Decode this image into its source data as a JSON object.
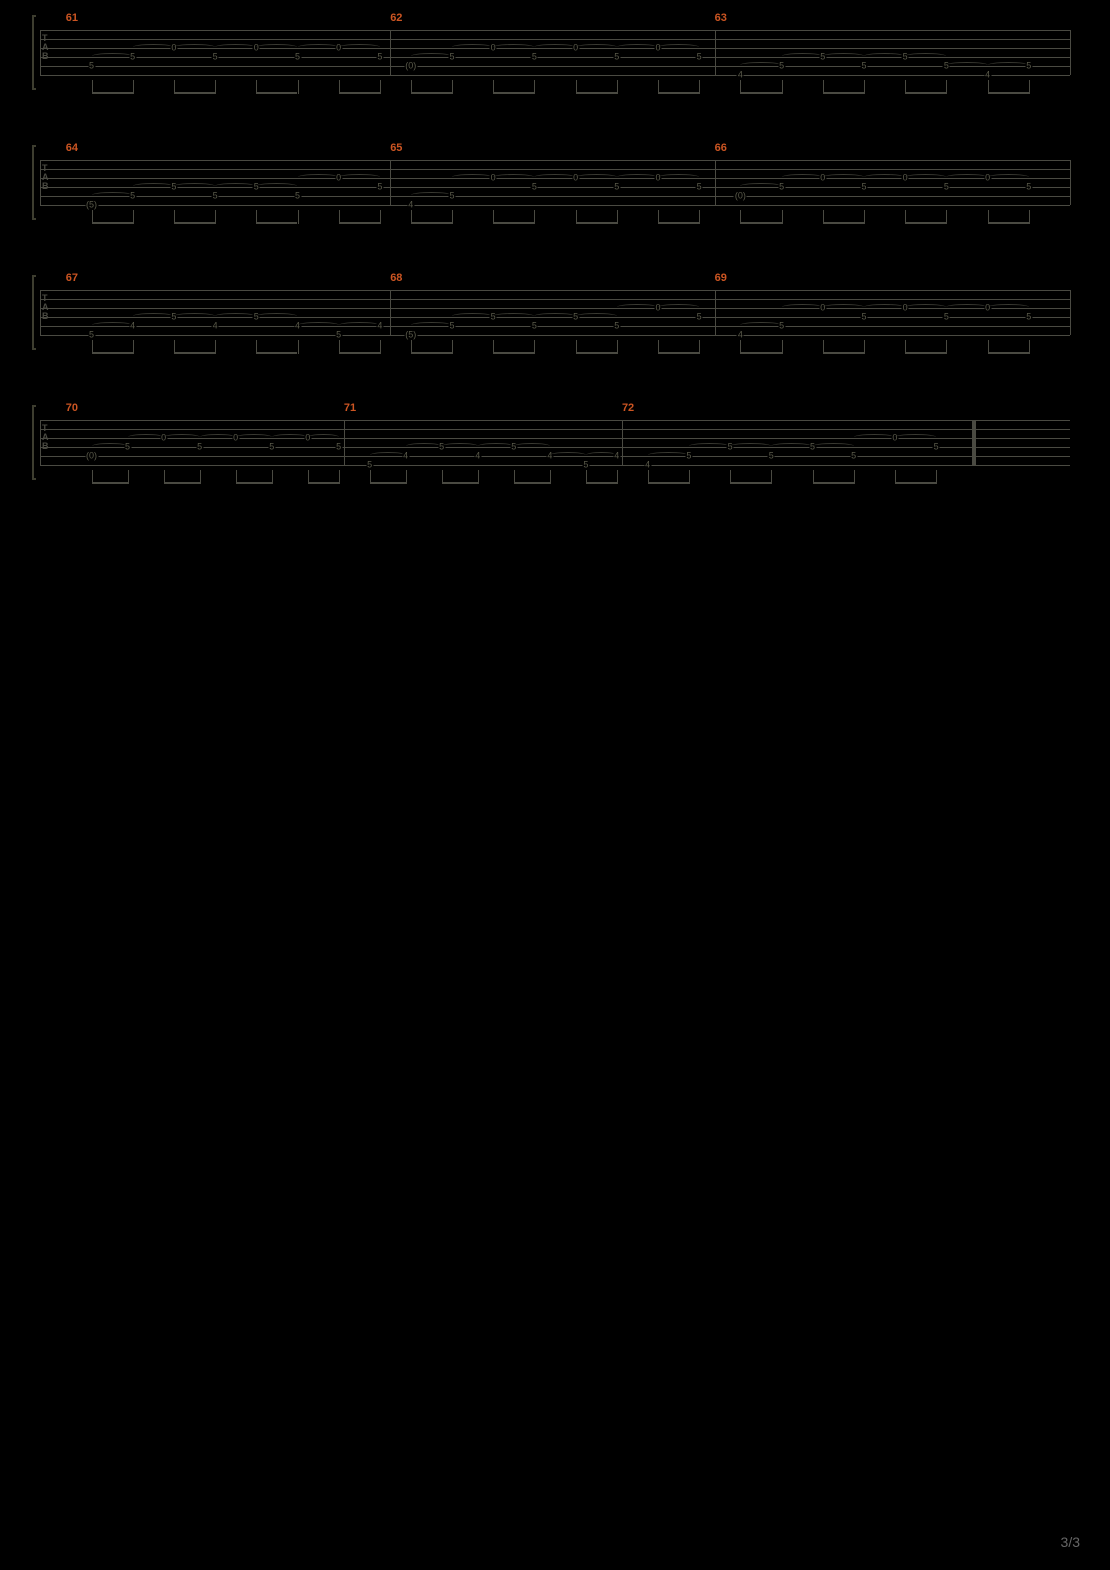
{
  "page_info": {
    "current": 3,
    "total": 3,
    "label": "3/3"
  },
  "colors": {
    "background": "#000000",
    "staff_line": "#4a4a42",
    "measure_number": "#cc5522",
    "fret_text": "#5a5a4a",
    "bracket": "#3d3d2f"
  },
  "tab_clef_letters": [
    "T",
    "A",
    "B"
  ],
  "staff_rows": [
    {
      "measures": [
        {
          "number": "61",
          "start_pct": 2.5,
          "width_pct": 31.5,
          "notes": [
            {
              "x": 5,
              "string": 4,
              "fret": "5"
            },
            {
              "x": 9,
              "string": 3,
              "fret": "5"
            },
            {
              "x": 13,
              "string": 2,
              "fret": "0"
            },
            {
              "x": 17,
              "string": 3,
              "fret": "5"
            },
            {
              "x": 21,
              "string": 2,
              "fret": "0"
            },
            {
              "x": 25,
              "string": 3,
              "fret": "5"
            },
            {
              "x": 29,
              "string": 2,
              "fret": "0"
            },
            {
              "x": 33,
              "string": 3,
              "fret": "5"
            }
          ],
          "beams": [
            [
              5,
              9
            ],
            [
              13,
              17
            ],
            [
              21,
              25
            ],
            [
              29,
              33
            ]
          ]
        },
        {
          "number": "62",
          "start_pct": 34,
          "width_pct": 31.5,
          "notes": [
            {
              "x": 36,
              "string": 4,
              "fret": "(0)",
              "paren": true
            },
            {
              "x": 40,
              "string": 3,
              "fret": "5"
            },
            {
              "x": 44,
              "string": 2,
              "fret": "0"
            },
            {
              "x": 48,
              "string": 3,
              "fret": "5"
            },
            {
              "x": 52,
              "string": 2,
              "fret": "0"
            },
            {
              "x": 56,
              "string": 3,
              "fret": "5"
            },
            {
              "x": 60,
              "string": 2,
              "fret": "0"
            },
            {
              "x": 64,
              "string": 3,
              "fret": "5"
            }
          ],
          "beams": [
            [
              36,
              40
            ],
            [
              44,
              48
            ],
            [
              52,
              56
            ],
            [
              60,
              64
            ]
          ]
        },
        {
          "number": "63",
          "start_pct": 65.5,
          "width_pct": 34.5,
          "notes": [
            {
              "x": 68,
              "string": 5,
              "fret": "4"
            },
            {
              "x": 72,
              "string": 4,
              "fret": "5"
            },
            {
              "x": 76,
              "string": 3,
              "fret": "5"
            },
            {
              "x": 80,
              "string": 4,
              "fret": "5"
            },
            {
              "x": 84,
              "string": 3,
              "fret": "5"
            },
            {
              "x": 88,
              "string": 4,
              "fret": "5"
            },
            {
              "x": 92,
              "string": 5,
              "fret": "4"
            },
            {
              "x": 96,
              "string": 4,
              "fret": "5"
            }
          ],
          "beams": [
            [
              68,
              72
            ],
            [
              76,
              80
            ],
            [
              84,
              88
            ],
            [
              92,
              96
            ]
          ]
        }
      ]
    },
    {
      "measures": [
        {
          "number": "64",
          "start_pct": 2.5,
          "width_pct": 31.5,
          "notes": [
            {
              "x": 5,
              "string": 5,
              "fret": "(5)",
              "paren": true
            },
            {
              "x": 9,
              "string": 4,
              "fret": "5"
            },
            {
              "x": 13,
              "string": 3,
              "fret": "5"
            },
            {
              "x": 17,
              "string": 4,
              "fret": "5"
            },
            {
              "x": 21,
              "string": 3,
              "fret": "5"
            },
            {
              "x": 25,
              "string": 4,
              "fret": "5"
            },
            {
              "x": 29,
              "string": 2,
              "fret": "0"
            },
            {
              "x": 33,
              "string": 3,
              "fret": "5"
            }
          ],
          "beams": [
            [
              5,
              9
            ],
            [
              13,
              17
            ],
            [
              21,
              25
            ],
            [
              29,
              33
            ]
          ]
        },
        {
          "number": "65",
          "start_pct": 34,
          "width_pct": 31.5,
          "notes": [
            {
              "x": 36,
              "string": 5,
              "fret": "4"
            },
            {
              "x": 40,
              "string": 4,
              "fret": "5"
            },
            {
              "x": 44,
              "string": 2,
              "fret": "0"
            },
            {
              "x": 48,
              "string": 3,
              "fret": "5"
            },
            {
              "x": 52,
              "string": 2,
              "fret": "0"
            },
            {
              "x": 56,
              "string": 3,
              "fret": "5"
            },
            {
              "x": 60,
              "string": 2,
              "fret": "0"
            },
            {
              "x": 64,
              "string": 3,
              "fret": "5"
            }
          ],
          "beams": [
            [
              36,
              40
            ],
            [
              44,
              48
            ],
            [
              52,
              56
            ],
            [
              60,
              64
            ]
          ]
        },
        {
          "number": "66",
          "start_pct": 65.5,
          "width_pct": 34.5,
          "notes": [
            {
              "x": 68,
              "string": 4,
              "fret": "(0)",
              "paren": true
            },
            {
              "x": 72,
              "string": 3,
              "fret": "5"
            },
            {
              "x": 76,
              "string": 2,
              "fret": "0"
            },
            {
              "x": 80,
              "string": 3,
              "fret": "5"
            },
            {
              "x": 84,
              "string": 2,
              "fret": "0"
            },
            {
              "x": 88,
              "string": 3,
              "fret": "5"
            },
            {
              "x": 92,
              "string": 2,
              "fret": "0"
            },
            {
              "x": 96,
              "string": 3,
              "fret": "5"
            }
          ],
          "beams": [
            [
              68,
              72
            ],
            [
              76,
              80
            ],
            [
              84,
              88
            ],
            [
              92,
              96
            ]
          ]
        }
      ]
    },
    {
      "measures": [
        {
          "number": "67",
          "start_pct": 2.5,
          "width_pct": 31.5,
          "notes": [
            {
              "x": 5,
              "string": 5,
              "fret": "5"
            },
            {
              "x": 9,
              "string": 4,
              "fret": "4"
            },
            {
              "x": 13,
              "string": 3,
              "fret": "5"
            },
            {
              "x": 17,
              "string": 4,
              "fret": "4"
            },
            {
              "x": 21,
              "string": 3,
              "fret": "5"
            },
            {
              "x": 25,
              "string": 4,
              "fret": "4"
            },
            {
              "x": 29,
              "string": 5,
              "fret": "5"
            },
            {
              "x": 33,
              "string": 4,
              "fret": "4"
            }
          ],
          "beams": [
            [
              5,
              9
            ],
            [
              13,
              17
            ],
            [
              21,
              25
            ],
            [
              29,
              33
            ]
          ]
        },
        {
          "number": "68",
          "start_pct": 34,
          "width_pct": 31.5,
          "notes": [
            {
              "x": 36,
              "string": 5,
              "fret": "(5)",
              "paren": true
            },
            {
              "x": 40,
              "string": 4,
              "fret": "5"
            },
            {
              "x": 44,
              "string": 3,
              "fret": "5"
            },
            {
              "x": 48,
              "string": 4,
              "fret": "5"
            },
            {
              "x": 52,
              "string": 3,
              "fret": "5"
            },
            {
              "x": 56,
              "string": 4,
              "fret": "5"
            },
            {
              "x": 60,
              "string": 2,
              "fret": "0"
            },
            {
              "x": 64,
              "string": 3,
              "fret": "5"
            }
          ],
          "beams": [
            [
              36,
              40
            ],
            [
              44,
              48
            ],
            [
              52,
              56
            ],
            [
              60,
              64
            ]
          ]
        },
        {
          "number": "69",
          "start_pct": 65.5,
          "width_pct": 34.5,
          "notes": [
            {
              "x": 68,
              "string": 5,
              "fret": "4"
            },
            {
              "x": 72,
              "string": 4,
              "fret": "5"
            },
            {
              "x": 76,
              "string": 2,
              "fret": "0"
            },
            {
              "x": 80,
              "string": 3,
              "fret": "5"
            },
            {
              "x": 84,
              "string": 2,
              "fret": "0"
            },
            {
              "x": 88,
              "string": 3,
              "fret": "5"
            },
            {
              "x": 92,
              "string": 2,
              "fret": "0"
            },
            {
              "x": 96,
              "string": 3,
              "fret": "5"
            }
          ],
          "beams": [
            [
              68,
              72
            ],
            [
              76,
              80
            ],
            [
              84,
              88
            ],
            [
              92,
              96
            ]
          ]
        }
      ]
    },
    {
      "measures": [
        {
          "number": "70",
          "start_pct": 2.5,
          "width_pct": 27,
          "notes": [
            {
              "x": 5,
              "string": 4,
              "fret": "(0)",
              "paren": true
            },
            {
              "x": 8.5,
              "string": 3,
              "fret": "5"
            },
            {
              "x": 12,
              "string": 2,
              "fret": "0"
            },
            {
              "x": 15.5,
              "string": 3,
              "fret": "5"
            },
            {
              "x": 19,
              "string": 2,
              "fret": "0"
            },
            {
              "x": 22.5,
              "string": 3,
              "fret": "5"
            },
            {
              "x": 26,
              "string": 2,
              "fret": "0"
            },
            {
              "x": 29,
              "string": 3,
              "fret": "5"
            }
          ],
          "beams": [
            [
              5,
              8.5
            ],
            [
              12,
              15.5
            ],
            [
              19,
              22.5
            ],
            [
              26,
              29
            ]
          ]
        },
        {
          "number": "71",
          "start_pct": 29.5,
          "width_pct": 27,
          "notes": [
            {
              "x": 32,
              "string": 5,
              "fret": "5"
            },
            {
              "x": 35.5,
              "string": 4,
              "fret": "4"
            },
            {
              "x": 39,
              "string": 3,
              "fret": "5"
            },
            {
              "x": 42.5,
              "string": 4,
              "fret": "4"
            },
            {
              "x": 46,
              "string": 3,
              "fret": "5"
            },
            {
              "x": 49.5,
              "string": 4,
              "fret": "4"
            },
            {
              "x": 53,
              "string": 5,
              "fret": "5"
            },
            {
              "x": 56,
              "string": 4,
              "fret": "4"
            }
          ],
          "beams": [
            [
              32,
              35.5
            ],
            [
              39,
              42.5
            ],
            [
              46,
              49.5
            ],
            [
              53,
              56
            ]
          ]
        },
        {
          "number": "72",
          "start_pct": 56.5,
          "width_pct": 34,
          "notes": [
            {
              "x": 59,
              "string": 5,
              "fret": "4"
            },
            {
              "x": 63,
              "string": 4,
              "fret": "5"
            },
            {
              "x": 67,
              "string": 3,
              "fret": "5"
            },
            {
              "x": 71,
              "string": 4,
              "fret": "5"
            },
            {
              "x": 75,
              "string": 3,
              "fret": "5"
            },
            {
              "x": 79,
              "string": 4,
              "fret": "5"
            },
            {
              "x": 83,
              "string": 2,
              "fret": "0"
            },
            {
              "x": 87,
              "string": 3,
              "fret": "5"
            }
          ],
          "beams": [
            [
              59,
              63
            ],
            [
              67,
              71
            ],
            [
              75,
              79
            ],
            [
              83,
              87
            ]
          ],
          "end_barline": true,
          "end_pct": 90.5
        }
      ]
    }
  ]
}
